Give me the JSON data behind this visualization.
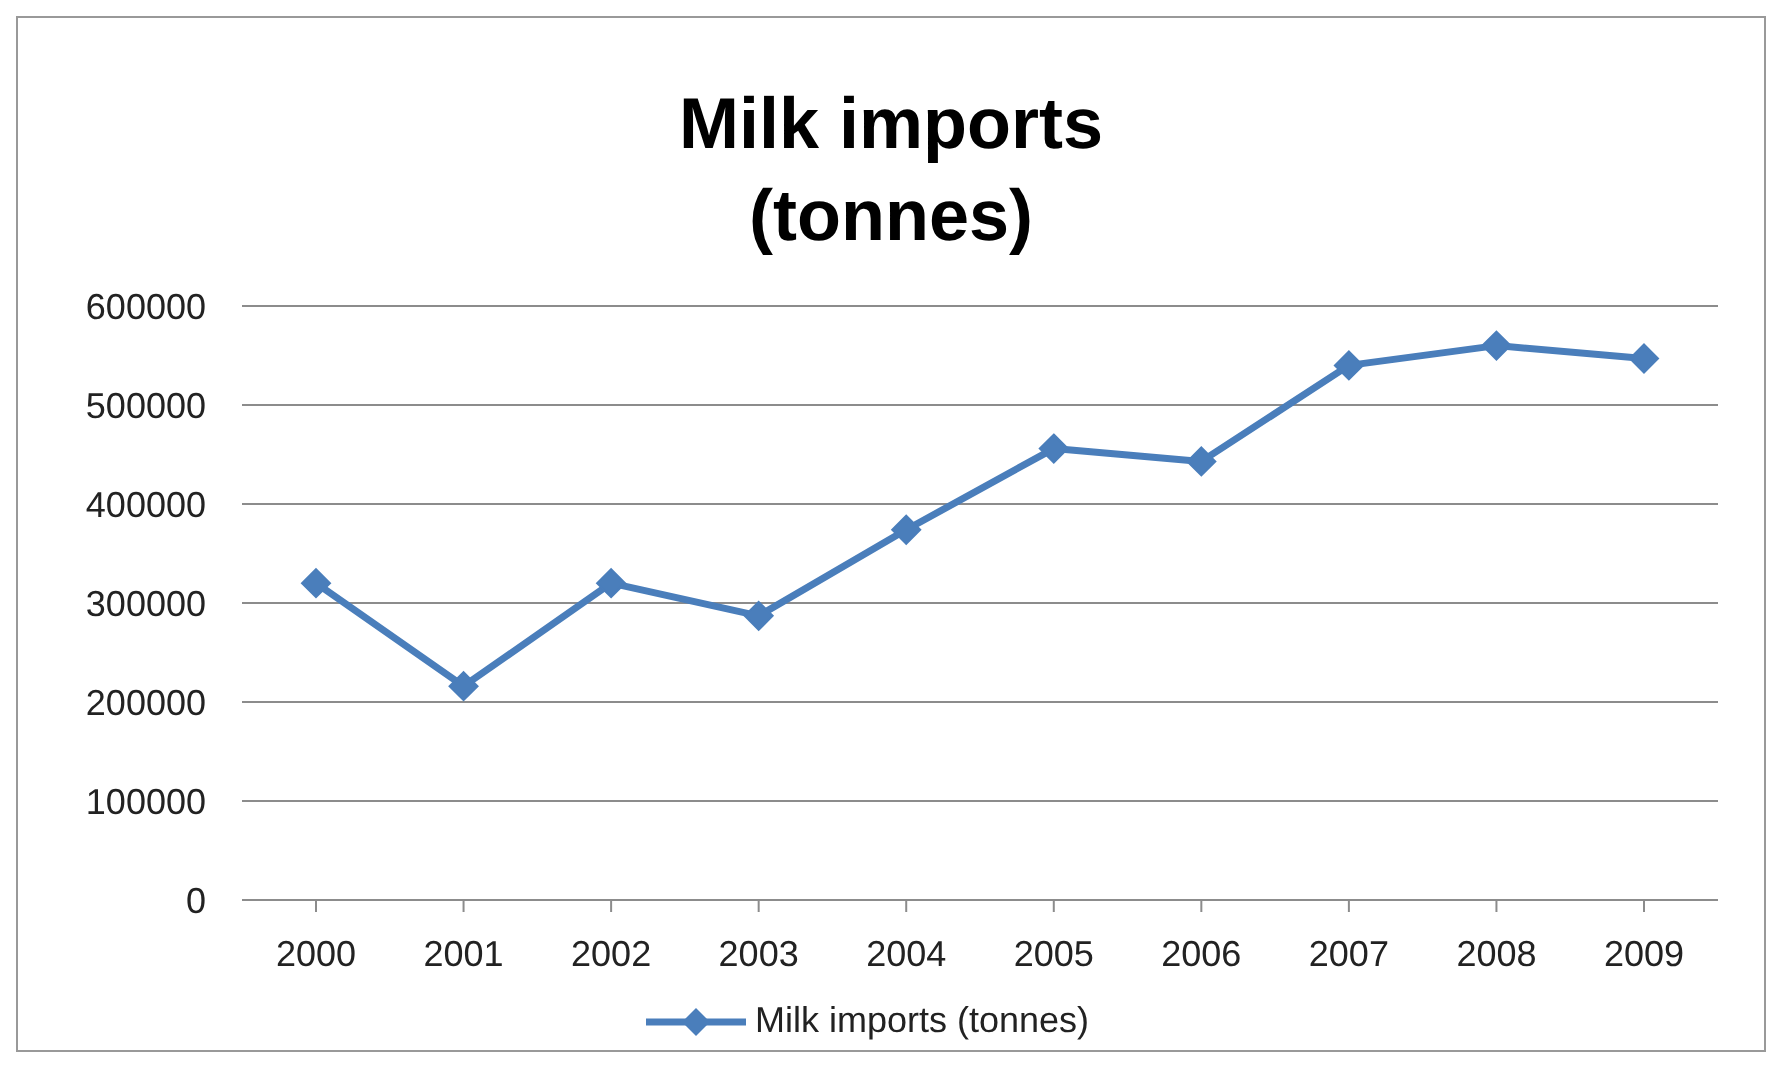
{
  "chart_data": {
    "type": "line",
    "title": "Milk imports (tonnes)",
    "categories": [
      "2000",
      "2001",
      "2002",
      "2003",
      "2004",
      "2005",
      "2006",
      "2007",
      "2008",
      "2009"
    ],
    "series": [
      {
        "name": "Milk imports (tonnes)",
        "color": "#4a7ebb",
        "values": [
          320000,
          216000,
          320000,
          287000,
          374000,
          456000,
          443000,
          540000,
          560000,
          547000
        ]
      }
    ],
    "ylim": [
      0,
      600000
    ],
    "yticks": [
      0,
      100000,
      200000,
      300000,
      400000,
      500000,
      600000
    ],
    "grid": "y",
    "legend": "bottom",
    "marker": "diamond",
    "line_style": "solid"
  }
}
